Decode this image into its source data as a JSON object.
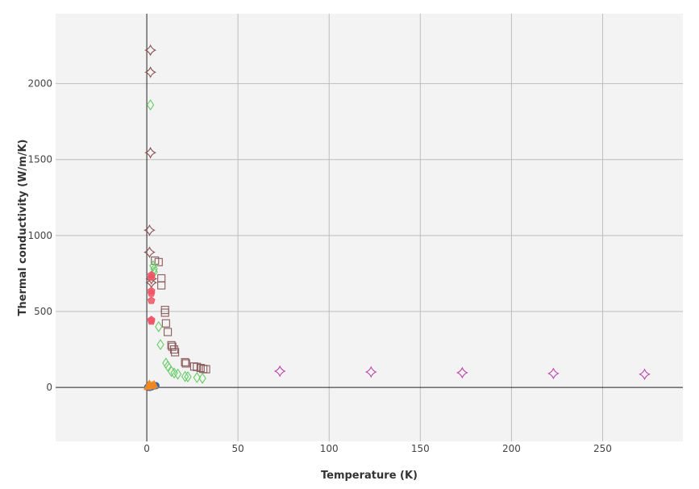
{
  "chart_data": {
    "type": "scatter",
    "title": "",
    "xlabel": "Temperature (K)",
    "ylabel": "Thermal conductivity (W/m/K)",
    "xlim": [
      -50,
      294
    ],
    "ylim": [
      -355,
      2460
    ],
    "xticks": [
      0,
      50,
      100,
      150,
      200,
      250
    ],
    "yticks": [
      0,
      500,
      1000,
      1500,
      2000
    ],
    "grid": true,
    "background": "#f3f3f3",
    "series": [
      {
        "color": "#8a4f4f",
        "marker": "star4",
        "points": [
          [
            2,
            2220
          ],
          [
            2,
            2075
          ],
          [
            2,
            1545
          ],
          [
            1.5,
            1035
          ],
          [
            1.5,
            890
          ],
          [
            2.5,
            715
          ],
          [
            2.5,
            690
          ]
        ]
      },
      {
        "color": "#8b5a5a",
        "marker": "square",
        "points": [
          [
            4.5,
            835
          ],
          [
            6.5,
            825
          ],
          [
            8,
            718
          ],
          [
            8,
            672
          ],
          [
            10,
            510
          ],
          [
            10,
            492
          ],
          [
            10.5,
            422
          ],
          [
            11.5,
            365
          ],
          [
            13.5,
            278
          ],
          [
            14,
            268
          ],
          [
            15,
            250
          ],
          [
            15.5,
            232
          ],
          [
            21,
            166
          ],
          [
            21.5,
            158
          ],
          [
            26,
            138
          ],
          [
            27.5,
            135
          ],
          [
            29.5,
            128
          ],
          [
            31,
            122
          ],
          [
            32.5,
            120
          ]
        ]
      },
      {
        "color": "#66cc66",
        "marker": "diamond",
        "points": [
          [
            2,
            1860
          ],
          [
            3.5,
            800
          ],
          [
            4,
            780
          ],
          [
            4,
            760
          ],
          [
            6.5,
            400
          ],
          [
            7.5,
            282
          ],
          [
            10.5,
            160
          ],
          [
            11.5,
            140
          ],
          [
            13.5,
            105
          ],
          [
            15,
            95
          ],
          [
            17,
            88
          ],
          [
            21,
            72
          ],
          [
            22.5,
            70
          ],
          [
            27.5,
            65
          ],
          [
            30.5,
            60
          ]
        ]
      },
      {
        "color": "#ee5566",
        "marker": "pentagon",
        "points": [
          [
            2.5,
            740
          ],
          [
            2.5,
            725
          ],
          [
            2.5,
            635
          ],
          [
            2.5,
            620
          ],
          [
            2.5,
            572
          ],
          [
            2.5,
            445
          ],
          [
            2.5,
            435
          ]
        ]
      },
      {
        "color": "#bb44aa",
        "marker": "star4",
        "points": [
          [
            73,
            107
          ],
          [
            123,
            102
          ],
          [
            173,
            97
          ],
          [
            223,
            92
          ],
          [
            273,
            87
          ]
        ]
      },
      {
        "color": "#3366aa",
        "marker": "circle",
        "points": [
          [
            0.5,
            2
          ],
          [
            1,
            4
          ],
          [
            2,
            6
          ],
          [
            3,
            8
          ],
          [
            4,
            10
          ],
          [
            5,
            12
          ],
          [
            1.5,
            0
          ],
          [
            2.5,
            3
          ]
        ]
      },
      {
        "color": "#ee8822",
        "marker": "triangle",
        "points": [
          [
            1,
            15
          ],
          [
            1.5,
            20
          ],
          [
            2,
            10
          ],
          [
            3,
            12
          ],
          [
            0.5,
            5
          ],
          [
            4,
            18
          ]
        ]
      }
    ]
  }
}
